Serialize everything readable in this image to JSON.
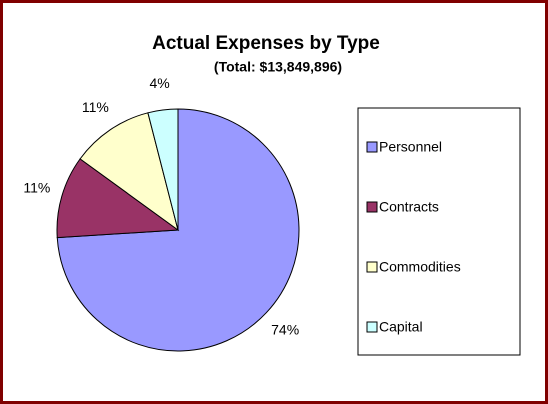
{
  "chart_data": {
    "type": "pie",
    "title": "Actual Expenses by Type",
    "subtitle": "(Total: $13,849,896)",
    "categories": [
      "Personnel",
      "Contracts",
      "Commodities",
      "Capital"
    ],
    "values": [
      74,
      11,
      11,
      4
    ],
    "value_labels": [
      "74%",
      "11%",
      "11%",
      "4%"
    ],
    "colors": [
      "#9999ff",
      "#993366",
      "#ffffcc",
      "#ccffff"
    ],
    "legend": "right"
  }
}
